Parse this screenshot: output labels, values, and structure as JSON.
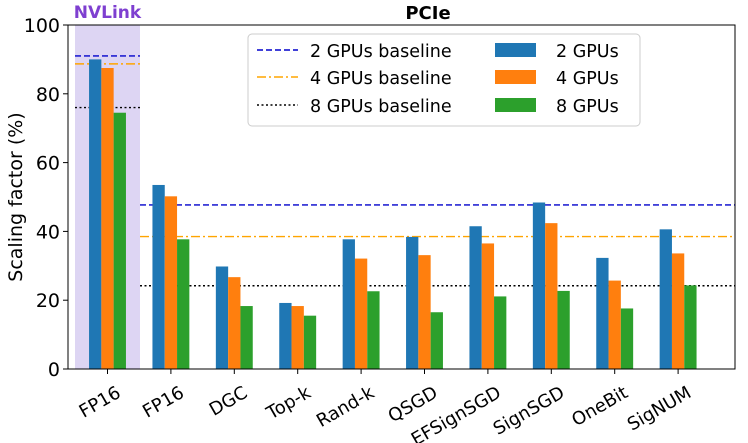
{
  "chart_data": {
    "type": "bar",
    "title": "PCIe",
    "highlight_label": "NVLink",
    "ylabel": "Scaling factor (%)",
    "xlabel": "",
    "ylim": [
      0,
      100
    ],
    "yticks": [
      0,
      20,
      40,
      60,
      80,
      100
    ],
    "grid": false,
    "legend_position": "top-right",
    "categories": [
      "FP16",
      "FP16",
      "DGC",
      "Top-k",
      "Rand-k",
      "QSGD",
      "EFSignSGD",
      "SignSGD",
      "OneBit",
      "SigNUM"
    ],
    "highlighted_categories": [
      0
    ],
    "series": [
      {
        "name": "2 GPUs",
        "color": "#1f77b4",
        "values": [
          90,
          53.5,
          29.8,
          19.2,
          37.7,
          38.4,
          41.5,
          48.4,
          32.3,
          40.6
        ]
      },
      {
        "name": "4 GPUs",
        "color": "#ff7f0e",
        "values": [
          87.5,
          50.2,
          26.7,
          18.3,
          32.1,
          33.1,
          36.5,
          42.4,
          25.7,
          33.6
        ]
      },
      {
        "name": "8 GPUs",
        "color": "#2ca02c",
        "values": [
          74.5,
          37.7,
          18.3,
          15.5,
          22.6,
          16.5,
          21.1,
          22.7,
          17.6,
          24.3
        ]
      }
    ],
    "baselines": [
      {
        "name": "2 GPUs baseline",
        "color": "#0000cc",
        "style": "dashed",
        "nvlink_value": 91,
        "pcie_value": 47.7
      },
      {
        "name": "4 GPUs baseline",
        "color": "#ffa500",
        "style": "dashdot",
        "nvlink_value": 88.7,
        "pcie_value": 38.5
      },
      {
        "name": "8 GPUs baseline",
        "color": "#000000",
        "style": "dotted",
        "nvlink_value": 76,
        "pcie_value": 24.2
      }
    ],
    "highlight_color": "#ddd5f3",
    "highlight_label_color": "#7e3fd0"
  }
}
